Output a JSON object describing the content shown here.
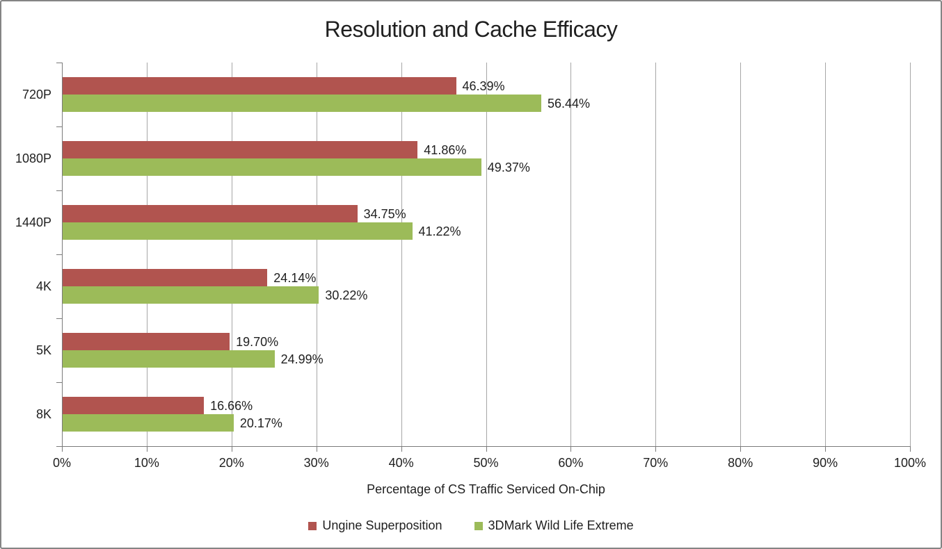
{
  "chart_data": {
    "type": "bar",
    "orientation": "horizontal",
    "title": "Resolution and Cache Efficacy",
    "categories": [
      "720P",
      "1080P",
      "1440P",
      "4K",
      "5K",
      "8K"
    ],
    "series": [
      {
        "name": "Ungine Superposition",
        "color": "#B1544F",
        "values": [
          46.39,
          41.86,
          34.75,
          24.14,
          19.7,
          16.66
        ]
      },
      {
        "name": "3DMark Wild Life Extreme",
        "color": "#9CBB59",
        "values": [
          56.44,
          49.37,
          41.22,
          30.22,
          24.99,
          20.17
        ]
      }
    ],
    "xlabel": "Percentage of CS Traffic Serviced On-Chip",
    "ylabel": "",
    "xlim": [
      0,
      100
    ],
    "x_tick_step": 10,
    "x_tick_labels": [
      "0%",
      "10%",
      "20%",
      "30%",
      "40%",
      "50%",
      "60%",
      "70%",
      "80%",
      "90%",
      "100%"
    ],
    "data_label_format": "0.00%",
    "grid": "vertical",
    "legend_position": "bottom",
    "colors": {
      "axis": "#7a7a7a",
      "gridline": "#a6a6a6",
      "text": "#1f1f1f",
      "frame_border": "#848484",
      "background": "#ffffff"
    }
  }
}
